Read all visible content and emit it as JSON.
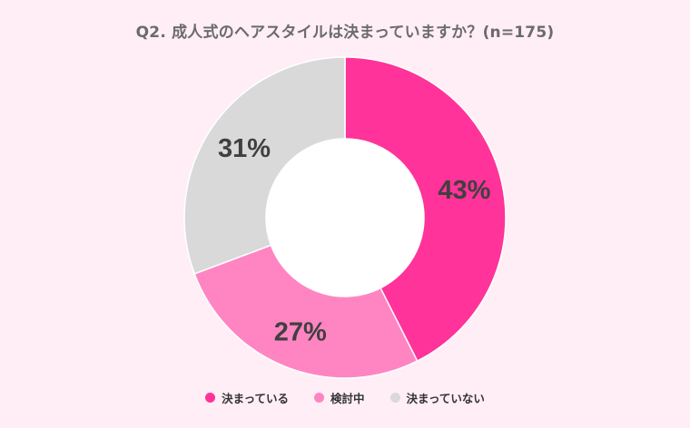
{
  "chart_data": {
    "type": "pie",
    "title": "Q2. 成人式のヘアスタイルは決まっていますか？(n=175)",
    "categories": [
      "決まっている",
      "検討中",
      "決まっていない"
    ],
    "values": [
      43,
      27,
      31
    ],
    "value_labels": [
      "43%",
      "27%",
      "31%"
    ],
    "colors": [
      "#ff3399",
      "#ff85c2",
      "#d9d9d9"
    ],
    "legend_position": "bottom",
    "donut": true
  }
}
